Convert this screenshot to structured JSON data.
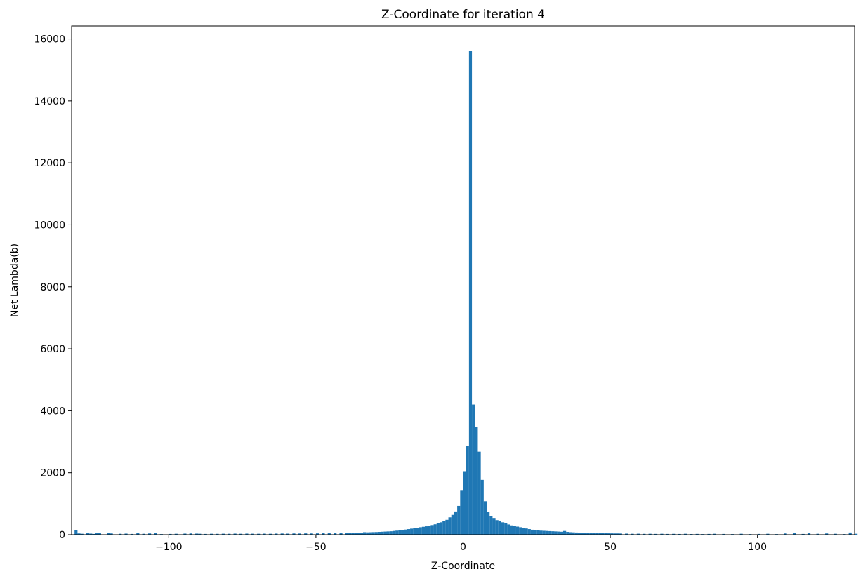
{
  "chart_data": {
    "type": "bar",
    "title": "Z-Coordinate for iteration 4",
    "xlabel": "Z-Coordinate",
    "ylabel": "Net Lambda(b)",
    "xlim": [
      -133,
      133
    ],
    "ylim": [
      0,
      16000
    ],
    "xticks": [
      -100,
      -50,
      0,
      50,
      100
    ],
    "xtick_labels": [
      "−100",
      "−50",
      "0",
      "50",
      "100"
    ],
    "yticks": [
      0,
      2000,
      4000,
      6000,
      8000,
      10000,
      12000,
      14000,
      16000
    ],
    "ytick_labels": [
      "0",
      "2000",
      "4000",
      "6000",
      "8000",
      "10000",
      "12000",
      "14000",
      "16000"
    ],
    "grid": false,
    "bar_color": "#1f77b4",
    "bin_width": 1,
    "bins": [
      [
        -132,
        150
      ],
      [
        -131,
        40
      ],
      [
        -130,
        30
      ],
      [
        -128,
        60
      ],
      [
        -127,
        35
      ],
      [
        -126,
        25
      ],
      [
        -125,
        45
      ],
      [
        -124,
        50
      ],
      [
        -121,
        55
      ],
      [
        -120,
        40
      ],
      [
        -117,
        30
      ],
      [
        -115,
        35
      ],
      [
        -113,
        25
      ],
      [
        -111,
        45
      ],
      [
        -109,
        30
      ],
      [
        -107,
        40
      ],
      [
        -105,
        60
      ],
      [
        -103,
        20
      ],
      [
        -100,
        25
      ],
      [
        -98,
        30
      ],
      [
        -95,
        35
      ],
      [
        -93,
        40
      ],
      [
        -91,
        35
      ],
      [
        -90,
        30
      ],
      [
        -88,
        25
      ],
      [
        -86,
        30
      ],
      [
        -84,
        28
      ],
      [
        -82,
        32
      ],
      [
        -80,
        30
      ],
      [
        -78,
        35
      ],
      [
        -76,
        30
      ],
      [
        -74,
        35
      ],
      [
        -72,
        32
      ],
      [
        -70,
        30
      ],
      [
        -68,
        34
      ],
      [
        -66,
        30
      ],
      [
        -64,
        36
      ],
      [
        -62,
        38
      ],
      [
        -60,
        34
      ],
      [
        -58,
        40
      ],
      [
        -56,
        38
      ],
      [
        -54,
        42
      ],
      [
        -52,
        40
      ],
      [
        -50,
        42
      ],
      [
        -48,
        45
      ],
      [
        -46,
        48
      ],
      [
        -44,
        50
      ],
      [
        -42,
        52
      ],
      [
        -40,
        55
      ],
      [
        -39,
        58
      ],
      [
        -38,
        60
      ],
      [
        -37,
        62
      ],
      [
        -36,
        65
      ],
      [
        -35,
        68
      ],
      [
        -34,
        80
      ],
      [
        -33,
        75
      ],
      [
        -32,
        78
      ],
      [
        -31,
        82
      ],
      [
        -30,
        85
      ],
      [
        -29,
        90
      ],
      [
        -28,
        95
      ],
      [
        -27,
        100
      ],
      [
        -26,
        105
      ],
      [
        -25,
        110
      ],
      [
        -24,
        120
      ],
      [
        -23,
        130
      ],
      [
        -22,
        140
      ],
      [
        -21,
        150
      ],
      [
        -20,
        165
      ],
      [
        -19,
        180
      ],
      [
        -18,
        195
      ],
      [
        -17,
        210
      ],
      [
        -16,
        225
      ],
      [
        -15,
        240
      ],
      [
        -14,
        255
      ],
      [
        -13,
        270
      ],
      [
        -12,
        290
      ],
      [
        -11,
        310
      ],
      [
        -10,
        335
      ],
      [
        -9,
        365
      ],
      [
        -8,
        400
      ],
      [
        -7,
        450
      ],
      [
        -6,
        480
      ],
      [
        -5,
        560
      ],
      [
        -4,
        640
      ],
      [
        -3,
        750
      ],
      [
        -2,
        930
      ],
      [
        -1,
        1420
      ],
      [
        0,
        2050
      ],
      [
        1,
        2870
      ],
      [
        2,
        15620
      ],
      [
        3,
        4200
      ],
      [
        4,
        3480
      ],
      [
        5,
        2680
      ],
      [
        6,
        1770
      ],
      [
        7,
        1080
      ],
      [
        8,
        740
      ],
      [
        9,
        600
      ],
      [
        10,
        540
      ],
      [
        11,
        470
      ],
      [
        12,
        430
      ],
      [
        13,
        400
      ],
      [
        14,
        380
      ],
      [
        15,
        330
      ],
      [
        16,
        300
      ],
      [
        17,
        280
      ],
      [
        18,
        260
      ],
      [
        19,
        240
      ],
      [
        20,
        220
      ],
      [
        21,
        200
      ],
      [
        22,
        180
      ],
      [
        23,
        160
      ],
      [
        24,
        150
      ],
      [
        25,
        140
      ],
      [
        26,
        130
      ],
      [
        27,
        125
      ],
      [
        28,
        120
      ],
      [
        29,
        115
      ],
      [
        30,
        110
      ],
      [
        31,
        105
      ],
      [
        32,
        100
      ],
      [
        33,
        95
      ],
      [
        34,
        120
      ],
      [
        35,
        90
      ],
      [
        36,
        80
      ],
      [
        37,
        75
      ],
      [
        38,
        70
      ],
      [
        39,
        68
      ],
      [
        40,
        65
      ],
      [
        41,
        62
      ],
      [
        42,
        60
      ],
      [
        43,
        58
      ],
      [
        44,
        55
      ],
      [
        45,
        52
      ],
      [
        46,
        50
      ],
      [
        47,
        48
      ],
      [
        48,
        46
      ],
      [
        49,
        44
      ],
      [
        50,
        42
      ],
      [
        51,
        40
      ],
      [
        52,
        40
      ],
      [
        53,
        38
      ],
      [
        55,
        35
      ],
      [
        57,
        30
      ],
      [
        59,
        32
      ],
      [
        61,
        28
      ],
      [
        63,
        30
      ],
      [
        65,
        26
      ],
      [
        67,
        30
      ],
      [
        69,
        25
      ],
      [
        71,
        28
      ],
      [
        73,
        24
      ],
      [
        75,
        30
      ],
      [
        77,
        22
      ],
      [
        79,
        26
      ],
      [
        81,
        20
      ],
      [
        83,
        25
      ],
      [
        85,
        30
      ],
      [
        88,
        25
      ],
      [
        91,
        20
      ],
      [
        94,
        30
      ],
      [
        97,
        20
      ],
      [
        100,
        25
      ],
      [
        103,
        30
      ],
      [
        106,
        20
      ],
      [
        109,
        40
      ],
      [
        112,
        60
      ],
      [
        115,
        25
      ],
      [
        117,
        50
      ],
      [
        120,
        30
      ],
      [
        123,
        40
      ],
      [
        126,
        30
      ],
      [
        129,
        20
      ],
      [
        131,
        70
      ],
      [
        133,
        30
      ]
    ]
  }
}
